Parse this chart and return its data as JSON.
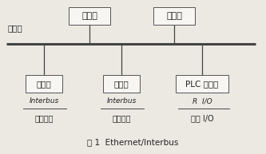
{
  "bg_color": "#ece9e3",
  "line_color": "#444444",
  "box_edge_color": "#555555",
  "box_face_color": "#f8f6f2",
  "text_color": "#222222",
  "ethernet_label": "以太网",
  "server_label": "服务器",
  "computer_label": "计算机",
  "ctrl1_label": "控制器",
  "ctrl2_label": "控制器",
  "ctrl3_label": "PLC 控制器",
  "interbus1_top": "Interbus",
  "interbus1_bot": "现场总线",
  "interbus2_top": "Interbus",
  "interbus2_bot": "现场总线",
  "rio_top": "R  I/O",
  "rio_bot": "远程 I/O",
  "caption": "图 1  Ethernet/Interbus"
}
